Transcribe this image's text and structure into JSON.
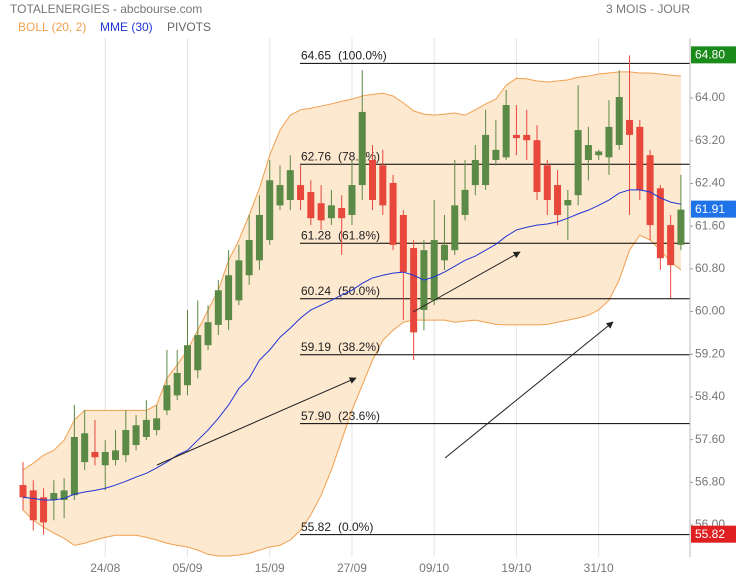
{
  "header": {
    "title": "TOTALENERGIES - abcbourse.com",
    "period": "3 MOIS - JOUR"
  },
  "chart_data": {
    "type": "candlestick",
    "categories": [
      null,
      null,
      null,
      null,
      null,
      null,
      null,
      null,
      "24/08",
      null,
      null,
      null,
      null,
      null,
      null,
      null,
      "05/09",
      null,
      null,
      null,
      null,
      null,
      null,
      null,
      "15/09",
      null,
      null,
      null,
      null,
      null,
      null,
      null,
      "27/09",
      null,
      null,
      null,
      null,
      null,
      null,
      null,
      "09/10",
      null,
      null,
      null,
      null,
      null,
      null,
      null,
      "19/10",
      null,
      null,
      null,
      null,
      null,
      null,
      null,
      "31/10",
      null,
      null,
      null,
      null,
      null,
      null,
      null,
      null
    ],
    "open": [
      56.75,
      56.65,
      56.52,
      56.47,
      56.47,
      56.56,
      57.18,
      57.37,
      57.12,
      57.22,
      57.31,
      57.5,
      57.65,
      57.78,
      58.15,
      58.43,
      58.62,
      58.9,
      59.37,
      59.75,
      59.84,
      60.21,
      60.68,
      60.96,
      61.34,
      61.99,
      62.09,
      62.37,
      62.24,
      62.03,
      61.75,
      61.94,
      61.81,
      62.37,
      62.84,
      62.74,
      62.41,
      61.81,
      61.19,
      60.03,
      60.21,
      60.96,
      61.15,
      61.81,
      62.37,
      62.37,
      62.84,
      62.89,
      63.31,
      63.31,
      63.21,
      62.74,
      62.37,
      61.99,
      62.18,
      62.84,
      62.93,
      62.89,
      63.12,
      63.59,
      63.46,
      62.93,
      62.31,
      61.62,
      61.25
    ],
    "high": [
      57.18,
      56.84,
      56.69,
      56.84,
      56.88,
      58.25,
      58.15,
      57.97,
      57.59,
      57.78,
      58.15,
      58.06,
      58.34,
      58.25,
      59.28,
      59.28,
      60.03,
      60.21,
      60.12,
      60.59,
      61.15,
      61.25,
      61.81,
      62.18,
      62.84,
      62.74,
      62.93,
      62.74,
      62.46,
      62.37,
      62.28,
      62.18,
      62.84,
      64.52,
      63.12,
      63.03,
      62.56,
      61.9,
      61.34,
      61.34,
      62.09,
      61.81,
      62.84,
      62.84,
      63.12,
      63.78,
      63.59,
      64.15,
      63.87,
      63.78,
      63.49,
      62.84,
      62.65,
      62.28,
      64.24,
      63.46,
      63.03,
      63.96,
      64.52,
      64.8,
      63.59,
      63.03,
      62.37,
      61.81,
      62.56
    ],
    "low": [
      56.28,
      55.9,
      55.82,
      56.09,
      56.13,
      56.47,
      57.03,
      57.12,
      56.65,
      57.12,
      57.18,
      57.4,
      57.59,
      57.68,
      58.06,
      58.34,
      58.43,
      58.75,
      59.28,
      59.56,
      59.65,
      60.12,
      60.5,
      60.78,
      61.25,
      61.9,
      61.9,
      61.9,
      61.62,
      61.53,
      61.62,
      61.06,
      61.62,
      62.09,
      61.9,
      61.81,
      61.15,
      59.84,
      59.09,
      59.65,
      60.12,
      60.78,
      61.06,
      61.71,
      62.18,
      62.28,
      62.74,
      62.84,
      62.93,
      62.84,
      62.09,
      61.81,
      61.62,
      61.34,
      61.99,
      62.46,
      62.84,
      62.56,
      63.03,
      61.81,
      62.09,
      61.34,
      60.78,
      60.25,
      61.15
    ],
    "close": [
      56.52,
      56.09,
      56.05,
      56.6,
      56.65,
      57.65,
      57.72,
      57.27,
      57.37,
      57.4,
      57.78,
      57.87,
      57.97,
      58.0,
      58.62,
      58.85,
      59.37,
      59.56,
      59.8,
      60.4,
      60.68,
      60.96,
      61.34,
      61.81,
      62.46,
      62.37,
      62.65,
      62.09,
      61.75,
      61.71,
      61.99,
      61.75,
      62.37,
      63.74,
      62.09,
      61.99,
      61.25,
      60.74,
      59.61,
      61.15,
      61.34,
      61.25,
      61.99,
      62.28,
      62.84,
      63.31,
      63.03,
      63.87,
      63.25,
      63.21,
      62.24,
      62.09,
      61.81,
      62.09,
      63.4,
      63.12,
      63.0,
      63.46,
      64.02,
      63.31,
      62.28,
      61.62,
      61.0,
      60.87,
      61.91
    ],
    "up_color": "#5a8a45",
    "down_color": "#e8473c",
    "bollinger": {
      "name": "BOLL (20, 2)",
      "color": "#f0a050",
      "fill": "#fde8d0",
      "upper": [
        57.03,
        57.16,
        57.31,
        57.4,
        57.59,
        57.97,
        58.15,
        58.15,
        58.15,
        58.15,
        58.15,
        58.15,
        58.15,
        58.25,
        58.75,
        59.0,
        59.28,
        59.65,
        60.03,
        60.4,
        60.96,
        61.34,
        61.81,
        62.31,
        62.93,
        63.4,
        63.68,
        63.78,
        63.81,
        63.85,
        63.89,
        63.94,
        63.98,
        64.04,
        64.07,
        64.09,
        64.04,
        63.91,
        63.76,
        63.7,
        63.68,
        63.7,
        63.72,
        63.68,
        63.78,
        63.89,
        63.98,
        64.24,
        64.37,
        64.36,
        64.32,
        64.3,
        64.32,
        64.34,
        64.39,
        64.41,
        64.45,
        64.47,
        64.49,
        64.49,
        64.47,
        64.47,
        64.45,
        64.43,
        64.41
      ],
      "lower": [
        56.28,
        56.09,
        55.96,
        55.85,
        55.75,
        55.62,
        55.66,
        55.72,
        55.77,
        55.81,
        55.81,
        55.81,
        55.77,
        55.72,
        55.66,
        55.62,
        55.59,
        55.53,
        55.45,
        55.42,
        55.42,
        55.44,
        55.47,
        55.53,
        55.59,
        55.62,
        55.72,
        55.9,
        56.19,
        56.56,
        57.03,
        57.59,
        58.15,
        58.62,
        59.09,
        59.46,
        59.65,
        59.8,
        59.84,
        59.84,
        59.84,
        59.84,
        59.8,
        59.82,
        59.84,
        59.8,
        59.76,
        59.75,
        59.75,
        59.75,
        59.75,
        59.76,
        59.8,
        59.84,
        59.88,
        59.93,
        60.03,
        60.21,
        60.59,
        61.15,
        61.43,
        61.34,
        61.15,
        60.93,
        60.78
      ]
    },
    "mme": {
      "name": "MME (30)",
      "color": "#1f35d8",
      "values": [
        56.52,
        56.5,
        56.47,
        56.47,
        56.5,
        56.58,
        56.62,
        56.65,
        56.69,
        56.75,
        56.82,
        56.9,
        56.97,
        57.07,
        57.18,
        57.31,
        57.4,
        57.59,
        57.78,
        58.0,
        58.25,
        58.56,
        58.75,
        59.09,
        59.28,
        59.52,
        59.69,
        59.88,
        60.03,
        60.12,
        60.21,
        60.31,
        60.4,
        60.53,
        60.63,
        60.68,
        60.72,
        60.74,
        60.68,
        60.59,
        60.65,
        60.74,
        60.85,
        60.96,
        61.04,
        61.15,
        61.26,
        61.41,
        61.53,
        61.58,
        61.62,
        61.64,
        61.68,
        61.75,
        61.83,
        61.9,
        61.99,
        62.09,
        62.22,
        62.28,
        62.28,
        62.24,
        62.13,
        62.05,
        62.01
      ]
    },
    "pivots": {
      "name": "PIVOTS",
      "color": "#000000",
      "levels": [
        {
          "value": 64.65,
          "label": "64.65",
          "ratio": "(100.0%)"
        },
        {
          "value": 62.76,
          "label": "62.76",
          "ratio": "(78.6%)"
        },
        {
          "value": 61.28,
          "label": "61.28",
          "ratio": "(61.8%)"
        },
        {
          "value": 60.24,
          "label": "60.24",
          "ratio": "(50.0%)"
        },
        {
          "value": 59.19,
          "label": "59.19",
          "ratio": "(38.2%)"
        },
        {
          "value": 57.9,
          "label": "57.90",
          "ratio": "(23.6%)"
        },
        {
          "value": 55.82,
          "label": "55.82",
          "ratio": "(0.0%)"
        }
      ]
    },
    "period_high": {
      "value": 64.8,
      "label": "64.80",
      "color": "#1a8a1a"
    },
    "period_low": {
      "value": 55.82,
      "label": "55.82",
      "color": "#e02020"
    },
    "last_color": "#1e73e8",
    "ylim": [
      55.4,
      65.5
    ],
    "yticks": [
      {
        "value": 56,
        "label": "56.00"
      },
      {
        "value": 56.8,
        "label": "56.80"
      },
      {
        "value": 57.6,
        "label": "57.60"
      },
      {
        "value": 58.4,
        "label": "58.40"
      },
      {
        "value": 59.2,
        "label": "59.20"
      },
      {
        "value": 60,
        "label": "60.00"
      },
      {
        "value": 60.8,
        "label": "60.80"
      },
      {
        "value": 61.6,
        "label": "61.60"
      },
      {
        "value": 62.4,
        "label": "62.40"
      },
      {
        "value": 63.2,
        "label": "63.20"
      },
      {
        "value": 64,
        "label": "64.00"
      }
    ],
    "grid": "x"
  }
}
